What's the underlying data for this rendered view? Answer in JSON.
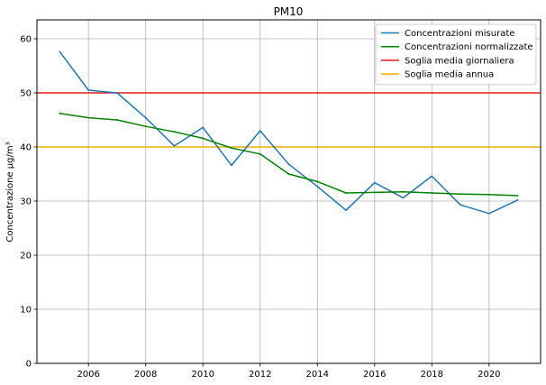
{
  "chart_data": {
    "type": "line",
    "title": "PM10",
    "xlabel": "",
    "ylabel": "Concentrazione µg/m³",
    "xlim": [
      2004.2,
      2021.8
    ],
    "ylim": [
      0,
      63.5
    ],
    "xticks": [
      2006,
      2008,
      2010,
      2012,
      2014,
      2016,
      2018,
      2020
    ],
    "yticks": [
      0,
      10,
      20,
      30,
      40,
      50,
      60
    ],
    "grid": true,
    "legend_position": "top-right",
    "x": [
      2005,
      2006,
      2007,
      2008,
      2009,
      2010,
      2011,
      2012,
      2013,
      2014,
      2015,
      2016,
      2017,
      2018,
      2019,
      2020,
      2021
    ],
    "series": [
      {
        "name": "Concentrazioni misurate",
        "color": "#1f77b4",
        "values": [
          57.6,
          50.5,
          50.0,
          45.4,
          40.2,
          43.6,
          36.6,
          43.0,
          36.8,
          32.7,
          28.3,
          33.4,
          30.6,
          34.6,
          29.3,
          27.7,
          30.2
        ]
      },
      {
        "name": "Concentrazioni normalizzate",
        "color": "#008000",
        "values": [
          46.2,
          45.4,
          45.0,
          43.8,
          42.8,
          41.6,
          39.8,
          38.7,
          35.0,
          33.6,
          31.5,
          31.6,
          31.7,
          31.5,
          31.3,
          31.2,
          31.0
        ]
      }
    ],
    "thresholds": [
      {
        "name": "Soglia media giornaliera",
        "color": "#e31a1c",
        "value": 50
      },
      {
        "name": "Soglia media annua",
        "color": "#f0b000",
        "value": 40
      }
    ]
  }
}
